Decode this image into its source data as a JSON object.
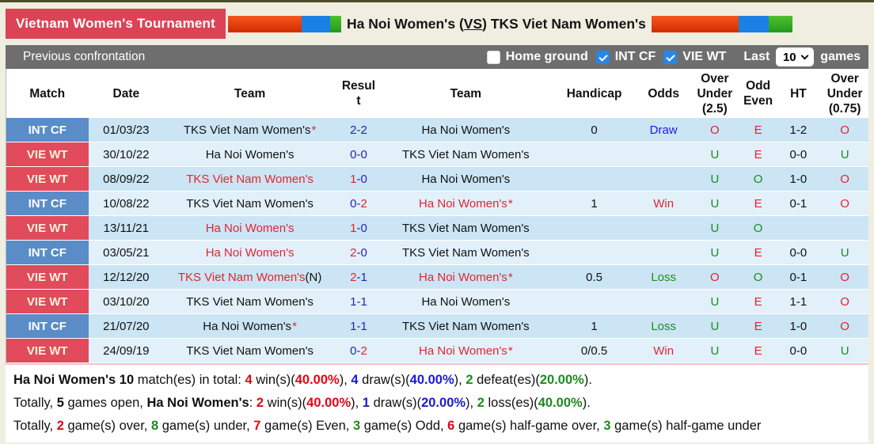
{
  "header": {
    "tournament": "Vietnam Women's Tournament",
    "title": {
      "home": "Ha Noi Women's",
      "open": " (",
      "vs": "VS",
      "close": ") ",
      "away": "TKS Viet Nam Women's"
    }
  },
  "filters": {
    "section_title": "Previous confrontation",
    "checkboxes": [
      {
        "label": "Home ground",
        "checked": false
      },
      {
        "label": "INT CF",
        "checked": true
      },
      {
        "label": "VIE WT",
        "checked": true
      }
    ],
    "last_label": "Last",
    "last_value": "10",
    "games_label": "games"
  },
  "colors": {
    "tournament_badge": "#dc4356",
    "int_cf_badge": "#5a8cc8",
    "vie_wt_badge": "#e14b5b",
    "win_red": "#e30613",
    "draw_blue": "#1a1ad6",
    "loss_green": "#1d8b1d",
    "score_navy": "#2525b2"
  },
  "table": {
    "headers": [
      "Match",
      "Date",
      "Team",
      "Resul\nt",
      "Team",
      "Handicap",
      "Odds",
      "Over\nUnder\n(2.5)",
      "Odd\nEven",
      "HT",
      "Over\nUnder\n(0.75)"
    ],
    "rows": [
      {
        "league": "INT CF",
        "date": "01/03/23",
        "team1": {
          "name": "TKS Viet Nam Women's",
          "red": false,
          "star": true,
          "suffix": ""
        },
        "score": {
          "h": "2",
          "hred": false,
          "a": "2",
          "ared": false
        },
        "team2": {
          "name": "Ha Noi Women's",
          "red": false,
          "star": false,
          "suffix": ""
        },
        "handicap": "0",
        "odds": {
          "text": "Draw",
          "color": "blue"
        },
        "ou25": {
          "text": "O",
          "color": "red"
        },
        "oddeven": {
          "text": "E",
          "color": "red"
        },
        "ht": "1-2",
        "ou075": {
          "text": "O",
          "color": "red"
        }
      },
      {
        "league": "VIE WT",
        "date": "30/10/22",
        "team1": {
          "name": "Ha Noi Women's",
          "red": false,
          "star": false,
          "suffix": ""
        },
        "score": {
          "h": "0",
          "hred": false,
          "a": "0",
          "ared": false
        },
        "team2": {
          "name": "TKS Viet Nam Women's",
          "red": false,
          "star": false,
          "suffix": ""
        },
        "handicap": "",
        "odds": {
          "text": "",
          "color": ""
        },
        "ou25": {
          "text": "U",
          "color": "green"
        },
        "oddeven": {
          "text": "E",
          "color": "red"
        },
        "ht": "0-0",
        "ou075": {
          "text": "U",
          "color": "green"
        }
      },
      {
        "league": "VIE WT",
        "date": "08/09/22",
        "team1": {
          "name": "TKS Viet Nam Women's",
          "red": true,
          "star": false,
          "suffix": ""
        },
        "score": {
          "h": "1",
          "hred": true,
          "a": "0",
          "ared": false
        },
        "team2": {
          "name": "Ha Noi Women's",
          "red": false,
          "star": false,
          "suffix": ""
        },
        "handicap": "",
        "odds": {
          "text": "",
          "color": ""
        },
        "ou25": {
          "text": "U",
          "color": "green"
        },
        "oddeven": {
          "text": "O",
          "color": "green"
        },
        "ht": "1-0",
        "ou075": {
          "text": "O",
          "color": "red"
        }
      },
      {
        "league": "INT CF",
        "date": "10/08/22",
        "team1": {
          "name": "TKS Viet Nam Women's",
          "red": false,
          "star": false,
          "suffix": ""
        },
        "score": {
          "h": "0",
          "hred": false,
          "a": "2",
          "ared": true
        },
        "team2": {
          "name": "Ha Noi Women's",
          "red": true,
          "star": true,
          "suffix": ""
        },
        "handicap": "1",
        "odds": {
          "text": "Win",
          "color": "red"
        },
        "ou25": {
          "text": "U",
          "color": "green"
        },
        "oddeven": {
          "text": "E",
          "color": "red"
        },
        "ht": "0-1",
        "ou075": {
          "text": "O",
          "color": "red"
        }
      },
      {
        "league": "VIE WT",
        "date": "13/11/21",
        "team1": {
          "name": "Ha Noi Women's",
          "red": true,
          "star": false,
          "suffix": ""
        },
        "score": {
          "h": "1",
          "hred": true,
          "a": "0",
          "ared": false
        },
        "team2": {
          "name": "TKS Viet Nam Women's",
          "red": false,
          "star": false,
          "suffix": ""
        },
        "handicap": "",
        "odds": {
          "text": "",
          "color": ""
        },
        "ou25": {
          "text": "U",
          "color": "green"
        },
        "oddeven": {
          "text": "O",
          "color": "green"
        },
        "ht": "",
        "ou075": {
          "text": "",
          "color": ""
        }
      },
      {
        "league": "INT CF",
        "date": "03/05/21",
        "team1": {
          "name": "Ha Noi Women's",
          "red": true,
          "star": false,
          "suffix": ""
        },
        "score": {
          "h": "2",
          "hred": true,
          "a": "0",
          "ared": false
        },
        "team2": {
          "name": "TKS Viet Nam Women's",
          "red": false,
          "star": false,
          "suffix": ""
        },
        "handicap": "",
        "odds": {
          "text": "",
          "color": ""
        },
        "ou25": {
          "text": "U",
          "color": "green"
        },
        "oddeven": {
          "text": "E",
          "color": "red"
        },
        "ht": "0-0",
        "ou075": {
          "text": "U",
          "color": "green"
        }
      },
      {
        "league": "VIE WT",
        "date": "12/12/20",
        "team1": {
          "name": "TKS Viet Nam Women's",
          "red": true,
          "star": false,
          "suffix": "(N)"
        },
        "score": {
          "h": "2",
          "hred": true,
          "a": "1",
          "ared": false
        },
        "team2": {
          "name": "Ha Noi Women's",
          "red": true,
          "star": true,
          "suffix": ""
        },
        "handicap": "0.5",
        "odds": {
          "text": "Loss",
          "color": "green"
        },
        "ou25": {
          "text": "O",
          "color": "red"
        },
        "oddeven": {
          "text": "O",
          "color": "green"
        },
        "ht": "0-1",
        "ou075": {
          "text": "O",
          "color": "red"
        }
      },
      {
        "league": "VIE WT",
        "date": "03/10/20",
        "team1": {
          "name": "TKS Viet Nam Women's",
          "red": false,
          "star": false,
          "suffix": ""
        },
        "score": {
          "h": "1",
          "hred": false,
          "a": "1",
          "ared": false
        },
        "team2": {
          "name": "Ha Noi Women's",
          "red": false,
          "star": false,
          "suffix": ""
        },
        "handicap": "",
        "odds": {
          "text": "",
          "color": ""
        },
        "ou25": {
          "text": "U",
          "color": "green"
        },
        "oddeven": {
          "text": "E",
          "color": "red"
        },
        "ht": "1-1",
        "ou075": {
          "text": "O",
          "color": "red"
        }
      },
      {
        "league": "INT CF",
        "date": "21/07/20",
        "team1": {
          "name": "Ha Noi Women's",
          "red": false,
          "star": true,
          "suffix": ""
        },
        "score": {
          "h": "1",
          "hred": false,
          "a": "1",
          "ared": false
        },
        "team2": {
          "name": "TKS Viet Nam Women's",
          "red": false,
          "star": false,
          "suffix": ""
        },
        "handicap": "1",
        "odds": {
          "text": "Loss",
          "color": "green"
        },
        "ou25": {
          "text": "U",
          "color": "green"
        },
        "oddeven": {
          "text": "E",
          "color": "red"
        },
        "ht": "1-0",
        "ou075": {
          "text": "O",
          "color": "red"
        }
      },
      {
        "league": "VIE WT",
        "date": "24/09/19",
        "team1": {
          "name": "TKS Viet Nam Women's",
          "red": false,
          "star": false,
          "suffix": ""
        },
        "score": {
          "h": "0",
          "hred": false,
          "a": "2",
          "ared": true
        },
        "team2": {
          "name": "Ha Noi Women's",
          "red": true,
          "star": true,
          "suffix": ""
        },
        "handicap": "0/0.5",
        "odds": {
          "text": "Win",
          "color": "red"
        },
        "ou25": {
          "text": "U",
          "color": "green"
        },
        "oddeven": {
          "text": "E",
          "color": "red"
        },
        "ht": "0-0",
        "ou075": {
          "text": "U",
          "color": "green"
        }
      }
    ]
  },
  "summary": {
    "lines": [
      [
        {
          "t": "Ha Noi Women's 10",
          "c": "kb"
        },
        {
          "t": " match(es) in total: ",
          "c": "k"
        },
        {
          "t": "4",
          "c": "rb"
        },
        {
          "t": " win(s)(",
          "c": "k"
        },
        {
          "t": "40.00%",
          "c": "rb"
        },
        {
          "t": "), ",
          "c": "k"
        },
        {
          "t": "4",
          "c": "bb"
        },
        {
          "t": " draw(s)(",
          "c": "k"
        },
        {
          "t": "40.00%",
          "c": "bb"
        },
        {
          "t": "), ",
          "c": "k"
        },
        {
          "t": "2",
          "c": "gb"
        },
        {
          "t": " defeat(es)(",
          "c": "k"
        },
        {
          "t": "20.00%",
          "c": "gb"
        },
        {
          "t": ").",
          "c": "k"
        }
      ],
      [
        {
          "t": "Totally, ",
          "c": "k"
        },
        {
          "t": "5",
          "c": "kb"
        },
        {
          "t": " games open, ",
          "c": "k"
        },
        {
          "t": "Ha Noi Women's",
          "c": "kb"
        },
        {
          "t": ": ",
          "c": "k"
        },
        {
          "t": "2",
          "c": "rb"
        },
        {
          "t": " win(s)(",
          "c": "k"
        },
        {
          "t": "40.00%",
          "c": "rb"
        },
        {
          "t": "), ",
          "c": "k"
        },
        {
          "t": "1",
          "c": "bb"
        },
        {
          "t": " draw(s)(",
          "c": "k"
        },
        {
          "t": "20.00%",
          "c": "bb"
        },
        {
          "t": "), ",
          "c": "k"
        },
        {
          "t": "2",
          "c": "gb"
        },
        {
          "t": " loss(es)(",
          "c": "k"
        },
        {
          "t": "40.00%",
          "c": "gb"
        },
        {
          "t": ").",
          "c": "k"
        }
      ],
      [
        {
          "t": "Totally, ",
          "c": "k"
        },
        {
          "t": "2",
          "c": "rb"
        },
        {
          "t": " game(s) over, ",
          "c": "k"
        },
        {
          "t": "8",
          "c": "gb"
        },
        {
          "t": " game(s) under, ",
          "c": "k"
        },
        {
          "t": "7",
          "c": "rb"
        },
        {
          "t": " game(s) Even, ",
          "c": "k"
        },
        {
          "t": "3",
          "c": "gb"
        },
        {
          "t": " game(s) Odd, ",
          "c": "k"
        },
        {
          "t": "6",
          "c": "rb"
        },
        {
          "t": " game(s) half-game over, ",
          "c": "k"
        },
        {
          "t": "3",
          "c": "gb"
        },
        {
          "t": " game(s) half-game under",
          "c": "k"
        }
      ]
    ]
  }
}
